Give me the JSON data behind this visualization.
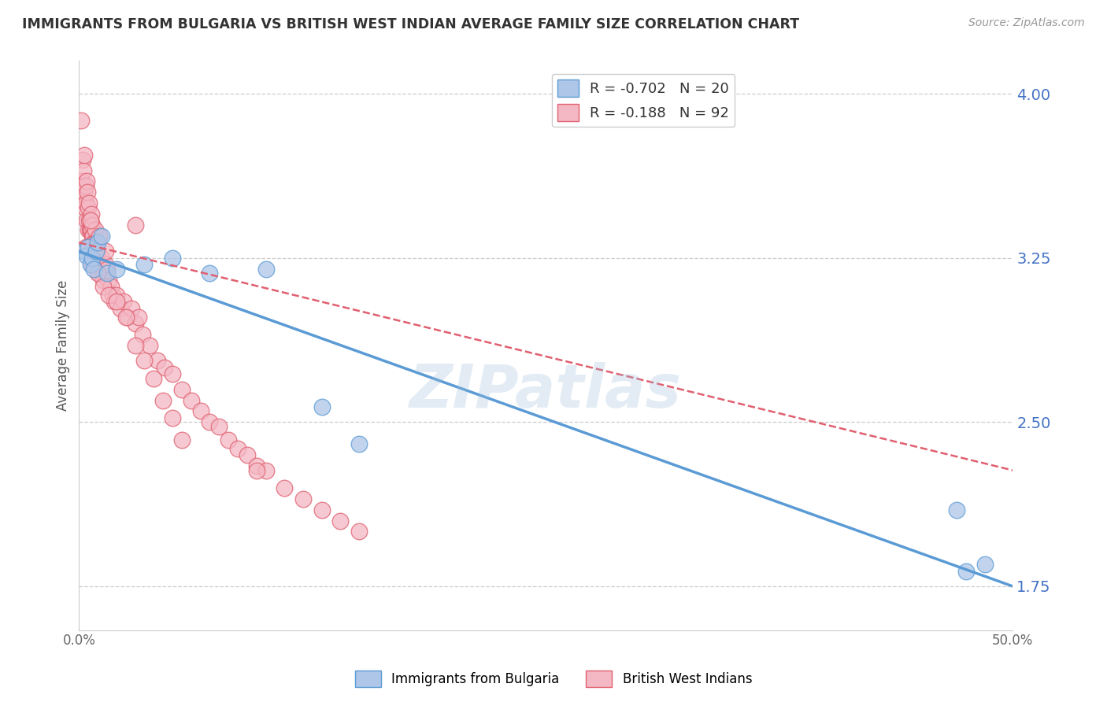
{
  "title": "IMMIGRANTS FROM BULGARIA VS BRITISH WEST INDIAN AVERAGE FAMILY SIZE CORRELATION CHART",
  "source": "Source: ZipAtlas.com",
  "ylabel": "Average Family Size",
  "yticks": [
    1.75,
    2.5,
    3.25,
    4.0
  ],
  "xlim": [
    0.0,
    50.0
  ],
  "ylim": [
    1.55,
    4.15
  ],
  "legend_entries": [
    {
      "label": "R = -0.702   N = 20"
    },
    {
      "label": "R = -0.188   N = 92"
    }
  ],
  "legend_labels": [
    "Immigrants from Bulgaria",
    "British West Indians"
  ],
  "watermark": "ZIPatlas",
  "blue_color": "#5b9bd5",
  "pink_color": "#e06070",
  "blue_fill": "#aec6e8",
  "pink_fill": "#f4b8c4",
  "blue_scatter": {
    "x": [
      0.3,
      0.4,
      0.5,
      0.6,
      0.7,
      0.8,
      0.9,
      1.0,
      1.2,
      1.5,
      2.0,
      3.5,
      5.0,
      7.0,
      10.0,
      13.0,
      15.0,
      47.0,
      47.5,
      48.5
    ],
    "y": [
      3.28,
      3.26,
      3.3,
      3.22,
      3.25,
      3.2,
      3.28,
      3.32,
      3.35,
      3.18,
      3.2,
      3.22,
      3.25,
      3.18,
      3.2,
      2.57,
      2.4,
      2.1,
      1.82,
      1.85
    ]
  },
  "pink_scatter": {
    "x": [
      0.1,
      0.15,
      0.18,
      0.2,
      0.22,
      0.25,
      0.28,
      0.3,
      0.32,
      0.35,
      0.38,
      0.4,
      0.42,
      0.45,
      0.48,
      0.5,
      0.52,
      0.55,
      0.58,
      0.6,
      0.62,
      0.65,
      0.68,
      0.7,
      0.72,
      0.75,
      0.78,
      0.8,
      0.82,
      0.85,
      0.9,
      0.95,
      1.0,
      1.05,
      1.1,
      1.15,
      1.2,
      1.25,
      1.3,
      1.35,
      1.4,
      1.5,
      1.6,
      1.7,
      1.8,
      1.9,
      2.0,
      2.2,
      2.4,
      2.6,
      2.8,
      3.0,
      3.2,
      3.4,
      3.8,
      4.2,
      4.6,
      5.0,
      5.5,
      6.0,
      6.5,
      7.0,
      7.5,
      8.0,
      8.5,
      9.0,
      9.5,
      10.0,
      11.0,
      12.0,
      13.0,
      14.0,
      15.0,
      3.0,
      0.6,
      0.9,
      1.1,
      1.4,
      0.35,
      0.7,
      1.0,
      1.3,
      1.6,
      2.0,
      2.5,
      3.0,
      3.5,
      4.0,
      4.5,
      5.0,
      5.5,
      9.5
    ],
    "y": [
      3.88,
      3.6,
      3.52,
      3.7,
      3.58,
      3.65,
      3.72,
      3.55,
      3.48,
      3.5,
      3.58,
      3.6,
      3.42,
      3.55,
      3.48,
      3.38,
      3.42,
      3.5,
      3.38,
      3.42,
      3.38,
      3.45,
      3.38,
      3.35,
      3.4,
      3.35,
      3.32,
      3.28,
      3.32,
      3.38,
      3.32,
      3.25,
      3.28,
      3.22,
      3.18,
      3.2,
      3.25,
      3.18,
      3.15,
      3.18,
      3.22,
      3.2,
      3.15,
      3.12,
      3.08,
      3.05,
      3.08,
      3.02,
      3.05,
      2.98,
      3.02,
      2.95,
      2.98,
      2.9,
      2.85,
      2.78,
      2.75,
      2.72,
      2.65,
      2.6,
      2.55,
      2.5,
      2.48,
      2.42,
      2.38,
      2.35,
      2.3,
      2.28,
      2.2,
      2.15,
      2.1,
      2.05,
      2.0,
      3.4,
      3.42,
      3.3,
      3.35,
      3.28,
      3.3,
      3.22,
      3.18,
      3.12,
      3.08,
      3.05,
      2.98,
      2.85,
      2.78,
      2.7,
      2.6,
      2.52,
      2.42,
      2.28
    ]
  },
  "blue_line": {
    "x0": 0.0,
    "x1": 50.0,
    "y0": 3.28,
    "y1": 1.75
  },
  "pink_line": {
    "x0": 0.0,
    "x1": 50.0,
    "y0": 3.32,
    "y1": 2.28
  },
  "background_color": "#ffffff",
  "grid_color": "#cccccc",
  "title_color": "#333333",
  "right_tick_color": "#4472c4"
}
